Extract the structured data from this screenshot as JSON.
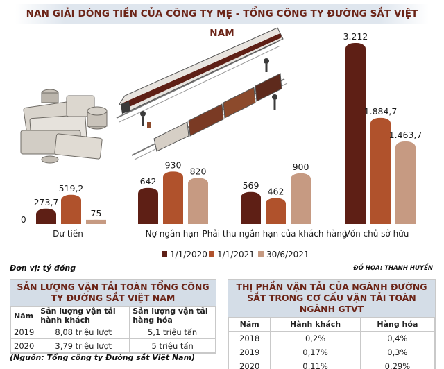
{
  "title": "NAN GIẢI DÒNG TIỀN CỦA CÔNG TY MẸ - TỔNG CÔNG TY ĐƯỜNG SẮT VIỆT NAM",
  "unit_note": "Đơn vị: tỷ đồng",
  "credit": "ĐỒ HỌA: THANH HUYỀN",
  "colors": {
    "s1": "#5e1f15",
    "s2": "#b0522c",
    "s3": "#c69a82",
    "title": "#6b2417"
  },
  "chart_data": {
    "type": "bar",
    "categories": [
      "Dư tiền",
      "Nợ ngân hạn",
      "Phải thu ngắn hạn của khách hàng",
      "Vốn chủ sở hữu"
    ],
    "series": [
      {
        "name": "1/1/2020",
        "values": [
          273.7,
          642,
          569,
          3212
        ]
      },
      {
        "name": "1/1/2021",
        "values": [
          519.2,
          930,
          462,
          1884.7
        ]
      },
      {
        "name": "30/6/2021",
        "values": [
          75,
          820,
          900,
          1463.7
        ]
      }
    ],
    "value_labels": [
      [
        "273,7",
        "519,2",
        "75"
      ],
      [
        "642",
        "930",
        "820"
      ],
      [
        "569",
        "462",
        "900"
      ],
      [
        "3.212",
        "1.884,7",
        "1.463,7"
      ]
    ],
    "y_zero_label": "0",
    "ylim": [
      0,
      3300
    ],
    "legend_position": "bottom"
  },
  "table_left": {
    "title": "SẢN LƯỢNG VẬN TẢI TOÀN TỔNG CÔNG TY ĐƯỜNG SẮT VIỆT NAM",
    "headers": [
      "Năm",
      "Sản lượng vận tải hành khách",
      "Sản lượng vận tải hàng hóa"
    ],
    "rows": [
      [
        "2019",
        "8,08 triệu lượt",
        "5,1 triệu tấn"
      ],
      [
        "2020",
        "3,79 triệu lượt",
        "5 triệu tấn"
      ]
    ]
  },
  "table_right": {
    "title": "THỊ PHẦN VẬN TẢI CỦA NGÀNH ĐƯỜNG SẮT TRONG CƠ CẤU VẬN TẢI TOÀN NGÀNH GTVT",
    "headers": [
      "Năm",
      "Hành khách",
      "Hàng hóa"
    ],
    "rows": [
      [
        "2018",
        "0,2%",
        "0,4%"
      ],
      [
        "2019",
        "0,17%",
        "0,3%"
      ],
      [
        "2020",
        "0,11%",
        "0,29%"
      ]
    ]
  },
  "source": "(Nguồn: Tổng công ty Đường sắt Việt Nam)"
}
